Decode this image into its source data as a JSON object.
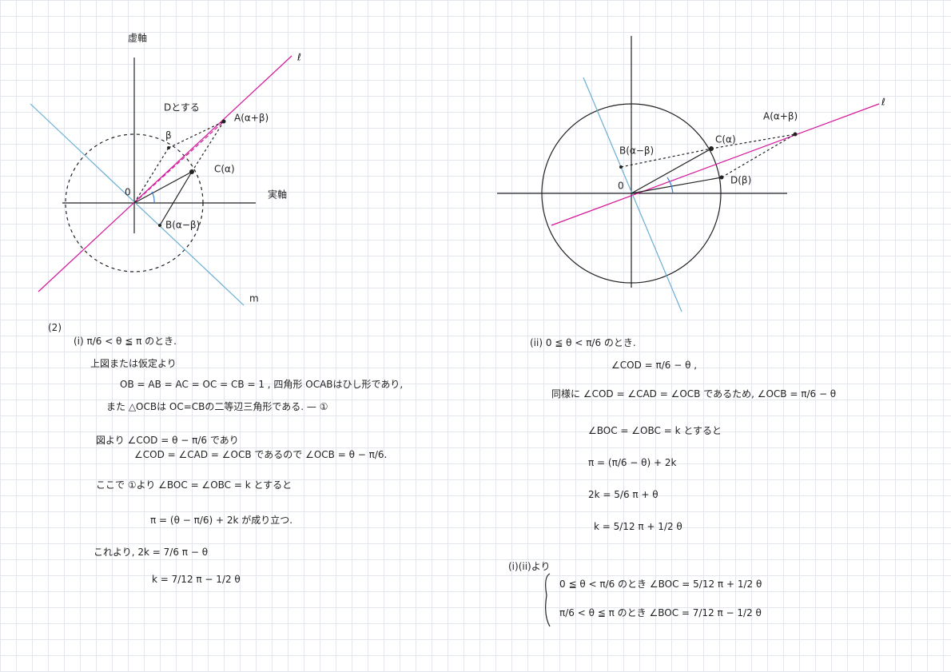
{
  "left_diagram": {
    "labels": [
      "虚軸",
      "ℓ",
      "Dとする",
      "β",
      "A(α+β)",
      "C(α)",
      "0",
      "実軸",
      "B(α−β)",
      "m"
    ]
  },
  "right_diagram": {
    "labels": [
      "A(α+β)",
      "ℓ",
      "C(α)",
      "B(α−β)",
      "0",
      "D(β)"
    ]
  },
  "left_text": {
    "lines": [
      "(2)",
      "(i) π/6 < θ ≦ π のとき.",
      "上図または仮定より",
      "OB = AB = AC = OC = CB = 1 ,  四角形 OCABはひし形であり,",
      "また △OCBは OC=CBの二等辺三角形である. — ①",
      "図より ∠COD = θ − π/6 であり",
      "∠COD = ∠CAD = ∠OCB であるので ∠OCB = θ − π/6.",
      "ここで ①より ∠BOC = ∠OBC = k とすると",
      "π = (θ − π/6) + 2k が成り立つ.",
      "これより,  2k = 7/6 π − θ",
      "k = 7/12 π − 1/2 θ"
    ]
  },
  "right_text": {
    "lines": [
      "(ii) 0 ≦ θ < π/6 のとき.",
      "∠COD = π/6 − θ ,",
      "同様に ∠COD = ∠CAD = ∠OCB であるため,  ∠OCB = π/6 − θ",
      "∠BOC = ∠OBC = k とすると",
      "π = (π/6 − θ) + 2k",
      "2k = 5/6 π + θ",
      "k = 5/12 π + 1/2 θ",
      "(i)(ii)より",
      "0 ≦ θ < π/6 のとき  ∠BOC = 5/12 π + 1/2 θ",
      "π/6 < θ ≦ π のとき  ∠BOC = 7/12 π − 1/2 θ"
    ]
  }
}
